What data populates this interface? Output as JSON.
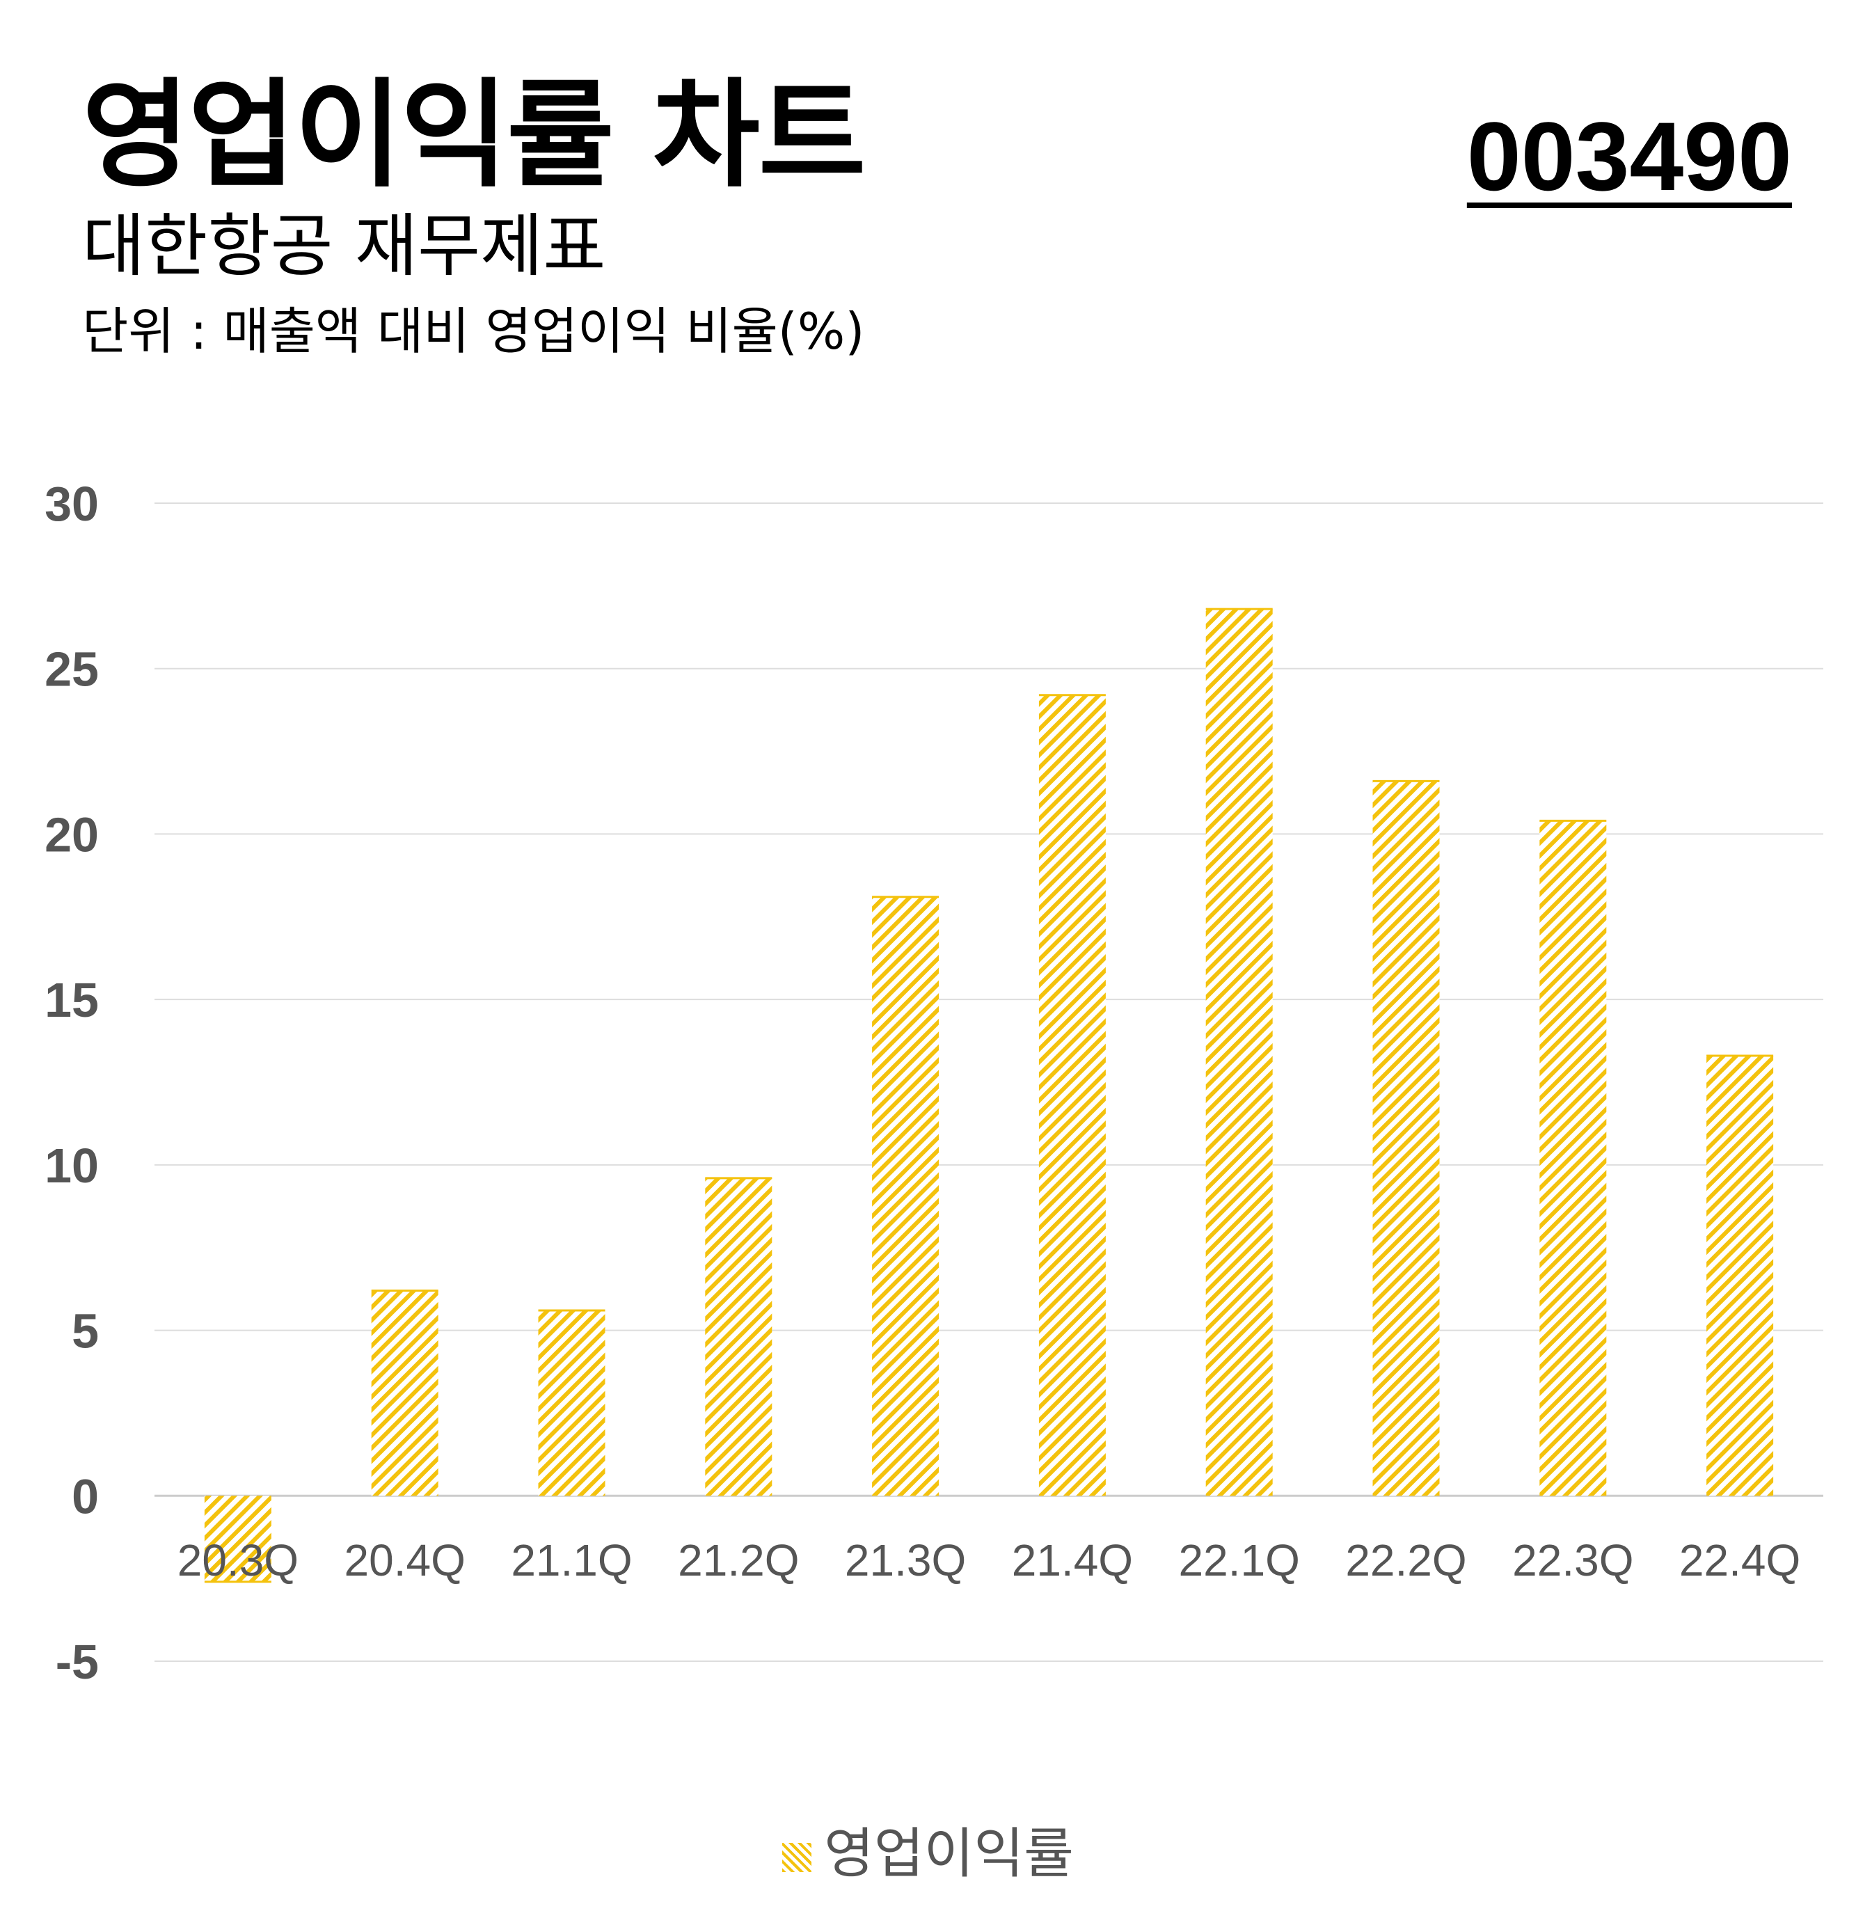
{
  "header": {
    "title": "영업이익률 차트",
    "subtitle": "대한항공 재무제표",
    "unit": "단위 : 매출액 대비 영업이익 비율(%)",
    "ticker": "003490"
  },
  "colors": {
    "bar": "#f4c20d",
    "grid": "#dddddd",
    "tick": "#555555"
  },
  "chart_data": {
    "type": "bar",
    "categories": [
      "20.3Q",
      "20.4Q",
      "21.1Q",
      "21.2Q",
      "21.3Q",
      "21.4Q",
      "22.1Q",
      "22.2Q",
      "22.3Q",
      "22.4Q"
    ],
    "series": [
      {
        "name": "영업이익률",
        "values": [
          -2.6,
          6.2,
          5.6,
          9.6,
          18.1,
          24.2,
          26.8,
          21.6,
          20.4,
          13.3
        ]
      }
    ],
    "ylim": [
      -5,
      30
    ],
    "yticks": [
      30,
      25,
      20,
      15,
      10,
      5,
      0,
      -5
    ],
    "grid": true,
    "legend_position": "bottom-center",
    "bar_fill": "diagonal-hatch"
  },
  "legend": {
    "label": "영업이익률"
  }
}
